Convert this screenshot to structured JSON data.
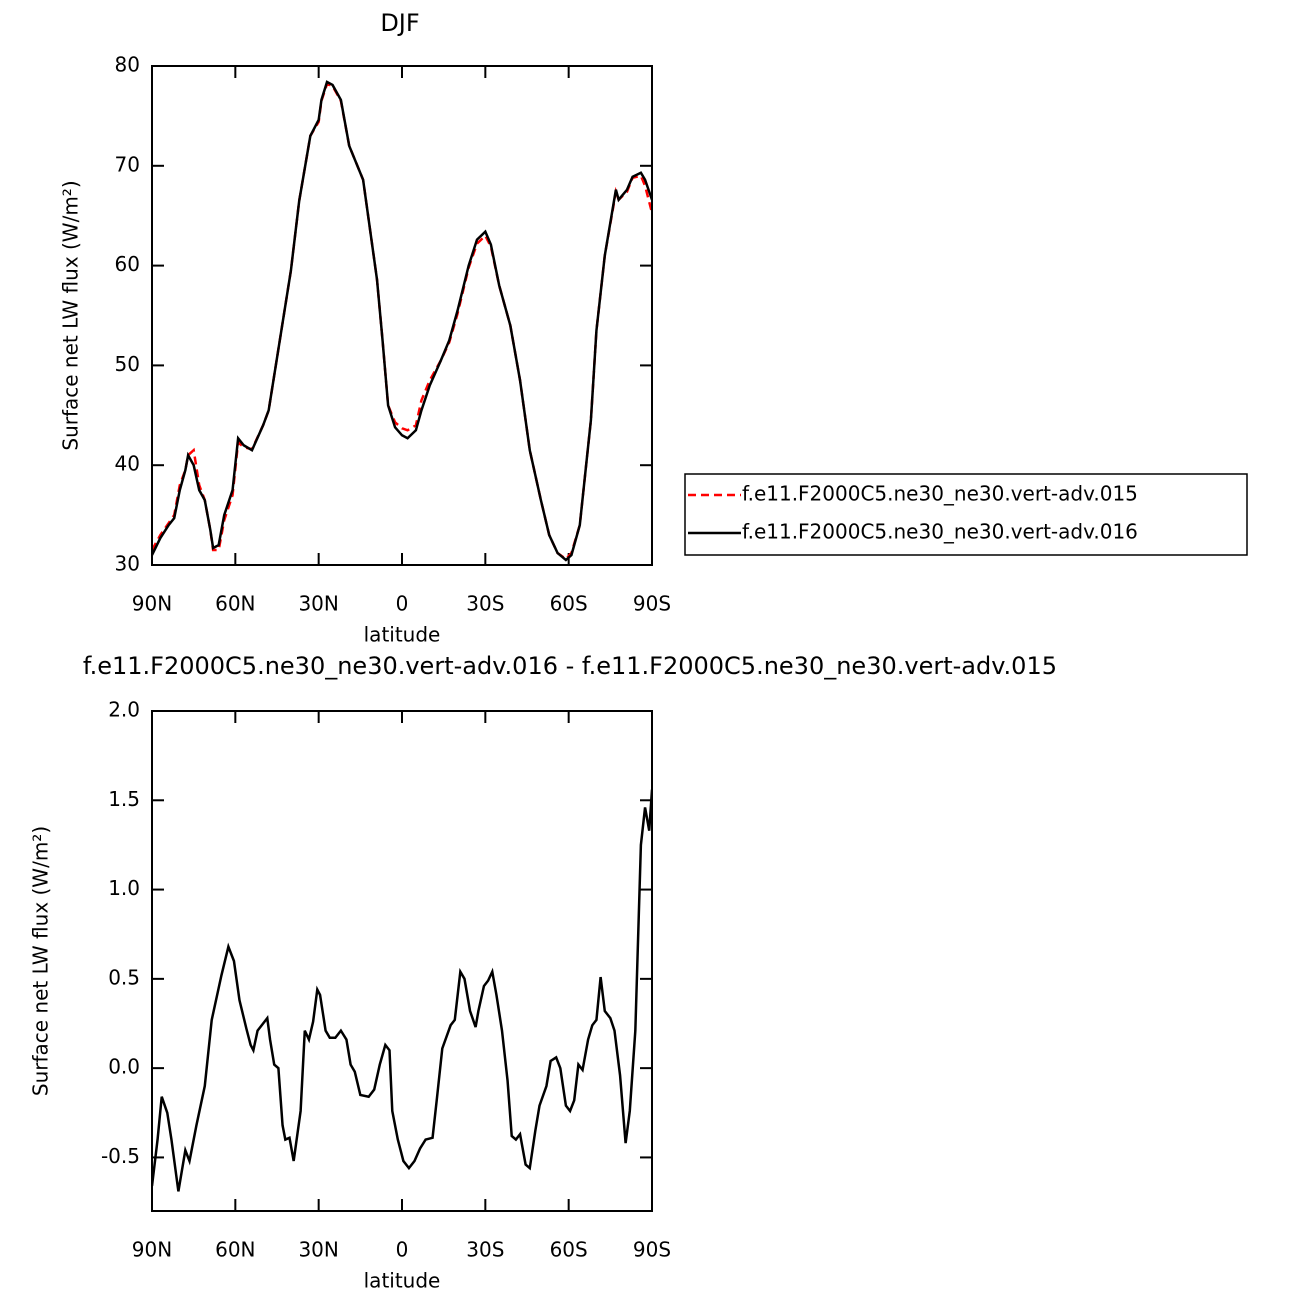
{
  "chart_data": [
    {
      "type": "line",
      "title": "DJF",
      "xlabel": "latitude",
      "ylabel": "Surface net LW flux (W/m²)",
      "x": [
        90,
        87,
        84,
        82,
        80,
        78,
        77,
        75,
        73,
        71,
        69,
        68,
        66,
        64,
        61,
        59,
        57,
        54,
        50,
        48,
        44,
        40,
        37,
        33,
        30,
        29,
        27,
        25,
        22,
        19,
        14,
        12,
        9,
        7,
        5,
        2.5,
        0,
        -2,
        -5,
        -7,
        -10,
        -14,
        -17,
        -20,
        -24,
        -27,
        -30,
        -32,
        -35,
        -39,
        -42.5,
        -46,
        -50,
        -53,
        -56,
        -59,
        -61,
        -64,
        -68,
        -70,
        -73,
        -77,
        -78,
        -81,
        -83,
        -86,
        -87.5,
        -90
      ],
      "series": [
        {
          "name": "f.e11.F2000C5.ne30_ne30.vert-adv.015",
          "color": "#ff0000",
          "dashed": true,
          "values": [
            31.5,
            33,
            34.2,
            35,
            38,
            39.5,
            41,
            41.5,
            38,
            36.5,
            33.5,
            31.5,
            31.5,
            34.5,
            37,
            42.3,
            41.8,
            41.6,
            44,
            45.5,
            52.5,
            59.5,
            66.5,
            73,
            74.4,
            76.5,
            78.2,
            78,
            76.5,
            72,
            68.6,
            64.6,
            58.6,
            52.5,
            46,
            44.3,
            43.7,
            43.5,
            44,
            46.5,
            48.5,
            50.5,
            52.3,
            55.2,
            59.8,
            62.2,
            63,
            61.9,
            58,
            54,
            48.5,
            41.5,
            36.5,
            33,
            31.2,
            30.6,
            31.2,
            34,
            44.5,
            53.5,
            61,
            67.4,
            66.6,
            67.4,
            68.8,
            69,
            68,
            65.3
          ]
        },
        {
          "name": "f.e11.F2000C5.ne30_ne30.vert-adv.016",
          "color": "#000000",
          "dashed": false,
          "values": [
            31,
            32.7,
            34,
            34.7,
            37.5,
            39.5,
            41,
            40,
            37.5,
            36.5,
            33.5,
            31.7,
            32,
            35,
            37.5,
            42.7,
            42,
            41.5,
            44,
            45.5,
            52.5,
            59.5,
            66.5,
            73,
            74.6,
            76.6,
            78.4,
            78.1,
            76.6,
            72,
            68.6,
            64.6,
            58.6,
            52.5,
            46,
            43.8,
            43,
            42.7,
            43.5,
            45.5,
            48,
            50.5,
            52.5,
            55.5,
            60,
            62.6,
            63.4,
            62.1,
            58,
            54,
            48.5,
            41.5,
            36.5,
            33,
            31.2,
            30.5,
            31,
            34,
            44.5,
            53.5,
            61,
            67.6,
            66.6,
            67.6,
            68.9,
            69.3,
            68.6,
            66.6
          ]
        }
      ],
      "xlim": [
        90,
        -90
      ],
      "xticks": [
        {
          "value": 90,
          "label": "90N"
        },
        {
          "value": 60,
          "label": "60N"
        },
        {
          "value": 30,
          "label": "30N"
        },
        0,
        {
          "value": -30,
          "label": "30S"
        },
        {
          "value": -60,
          "label": "60S"
        },
        {
          "value": -90,
          "label": "90S"
        }
      ],
      "ylim": [
        30,
        80
      ],
      "yticks": [
        30,
        40,
        50,
        60,
        70,
        80
      ],
      "legend": "right"
    },
    {
      "type": "line",
      "title": "f.e11.F2000C5.ne30_ne30.vert-adv.016 - f.e11.F2000C5.ne30_ne30.vert-adv.015",
      "xlabel": "latitude",
      "ylabel": "Surface net LW flux (W/m²)",
      "x": [
        90,
        88,
        86.5,
        84.5,
        83,
        80.5,
        78,
        76.5,
        74,
        71,
        68.5,
        65,
        62.5,
        60.5,
        58.5,
        56,
        54.5,
        53.5,
        52,
        48.5,
        47.5,
        46,
        44.5,
        43,
        42,
        40.5,
        39,
        36.5,
        35,
        33.5,
        32,
        30.5,
        29.5,
        27.5,
        26,
        24,
        22,
        20,
        18.5,
        17,
        15,
        12,
        10,
        8,
        6,
        4.5,
        3.5,
        1.5,
        -0.5,
        -2.5,
        -4.5,
        -6.5,
        -8.5,
        -11,
        -12.5,
        -14.5,
        -17.5,
        -19,
        -21,
        -22.5,
        -24.5,
        -26.5,
        -27.5,
        -29.5,
        -31,
        -32.5,
        -34,
        -36,
        -38,
        -39.5,
        -41,
        -42.5,
        -44.5,
        -46,
        -48,
        -49.5,
        -52,
        -53.5,
        -55.5,
        -57,
        -59,
        -60.5,
        -62,
        -63.5,
        -65,
        -67,
        -68.5,
        -70,
        -71.5,
        -73,
        -75,
        -76.5,
        -78.5,
        -80.5,
        -82,
        -84,
        -86,
        -87.5,
        -89,
        -90
      ],
      "values": [
        -0.66,
        -0.4,
        -0.16,
        -0.25,
        -0.4,
        -0.69,
        -0.46,
        -0.52,
        -0.32,
        -0.1,
        0.27,
        0.52,
        0.68,
        0.6,
        0.38,
        0.22,
        0.13,
        0.1,
        0.21,
        0.28,
        0.16,
        0.02,
        0,
        -0.32,
        -0.4,
        -0.39,
        -0.52,
        -0.24,
        0.21,
        0.16,
        0.26,
        0.44,
        0.41,
        0.21,
        0.17,
        0.17,
        0.21,
        0.16,
        0.02,
        -0.02,
        -0.15,
        -0.16,
        -0.12,
        0.02,
        0.13,
        0.1,
        -0.24,
        -0.4,
        -0.52,
        -0.56,
        -0.52,
        -0.45,
        -0.4,
        -0.39,
        -0.18,
        0.11,
        0.24,
        0.27,
        0.54,
        0.5,
        0.32,
        0.23,
        0.32,
        0.46,
        0.49,
        0.54,
        0.41,
        0.21,
        -0.07,
        -0.38,
        -0.4,
        -0.37,
        -0.54,
        -0.56,
        -0.35,
        -0.21,
        -0.1,
        0.04,
        0.06,
        0,
        -0.21,
        -0.24,
        -0.18,
        0.02,
        -0.01,
        0.16,
        0.24,
        0.27,
        0.51,
        0.32,
        0.28,
        0.21,
        -0.04,
        -0.42,
        -0.24,
        0.21,
        1.25,
        1.46,
        1.33,
        1.56
      ],
      "color": "#000000",
      "xlim": [
        90,
        -90
      ],
      "xticks": [
        {
          "value": 90,
          "label": "90N"
        },
        {
          "value": 60,
          "label": "60N"
        },
        {
          "value": 30,
          "label": "30N"
        },
        0,
        {
          "value": -30,
          "label": "30S"
        },
        {
          "value": -60,
          "label": "60S"
        },
        {
          "value": -90,
          "label": "90S"
        }
      ],
      "ylim": [
        -0.8,
        2.0
      ],
      "yticks": [
        -0.5,
        {
          "value": 0,
          "label": "0.0"
        },
        0.5,
        {
          "value": 1,
          "label": "1.0"
        },
        1.5,
        {
          "value": 2,
          "label": "2.0"
        }
      ]
    }
  ]
}
